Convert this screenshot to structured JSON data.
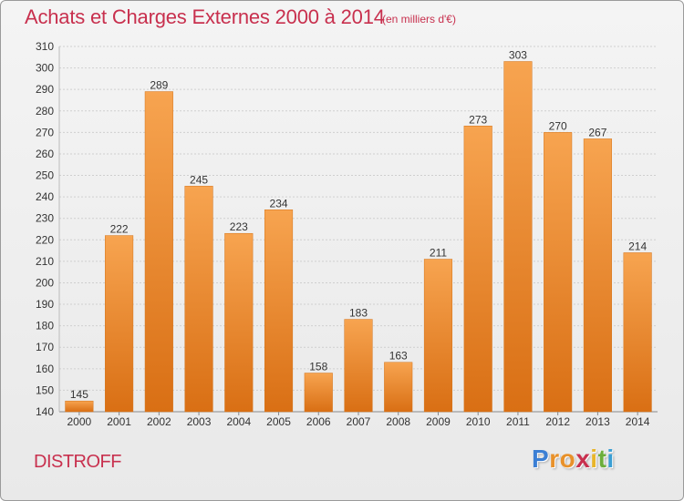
{
  "chart_data": {
    "type": "bar",
    "title": "Achats et Charges Externes 2000 à 2014",
    "subtitle": "(en milliers d'€)",
    "categories": [
      "2000",
      "2001",
      "2002",
      "2003",
      "2004",
      "2005",
      "2006",
      "2007",
      "2008",
      "2009",
      "2010",
      "2011",
      "2012",
      "2013",
      "2014"
    ],
    "values": [
      145,
      222,
      289,
      245,
      223,
      234,
      158,
      183,
      163,
      211,
      273,
      303,
      270,
      267,
      214
    ],
    "ylim": [
      140,
      310
    ],
    "yticks": [
      140,
      150,
      160,
      170,
      180,
      190,
      200,
      210,
      220,
      230,
      240,
      250,
      260,
      270,
      280,
      290,
      300,
      310
    ],
    "grid": true,
    "bar_color": "#f0892e",
    "bar_color_light": "#f7a450",
    "bar_color_dark": "#d96f14",
    "title_color": "#c8304e"
  },
  "footer": {
    "commune": "DISTROFF"
  },
  "logo": {
    "letters": [
      {
        "ch": "P",
        "color": "#3b7fd4"
      },
      {
        "ch": "r",
        "color": "#e8912a"
      },
      {
        "ch": "o",
        "color": "#e8912a"
      },
      {
        "ch": "x",
        "color": "#c8304e"
      },
      {
        "ch": "i",
        "color": "#e8b52a"
      },
      {
        "ch": "t",
        "color": "#6cae3b"
      },
      {
        "ch": "i",
        "color": "#3b9fd4"
      }
    ]
  }
}
